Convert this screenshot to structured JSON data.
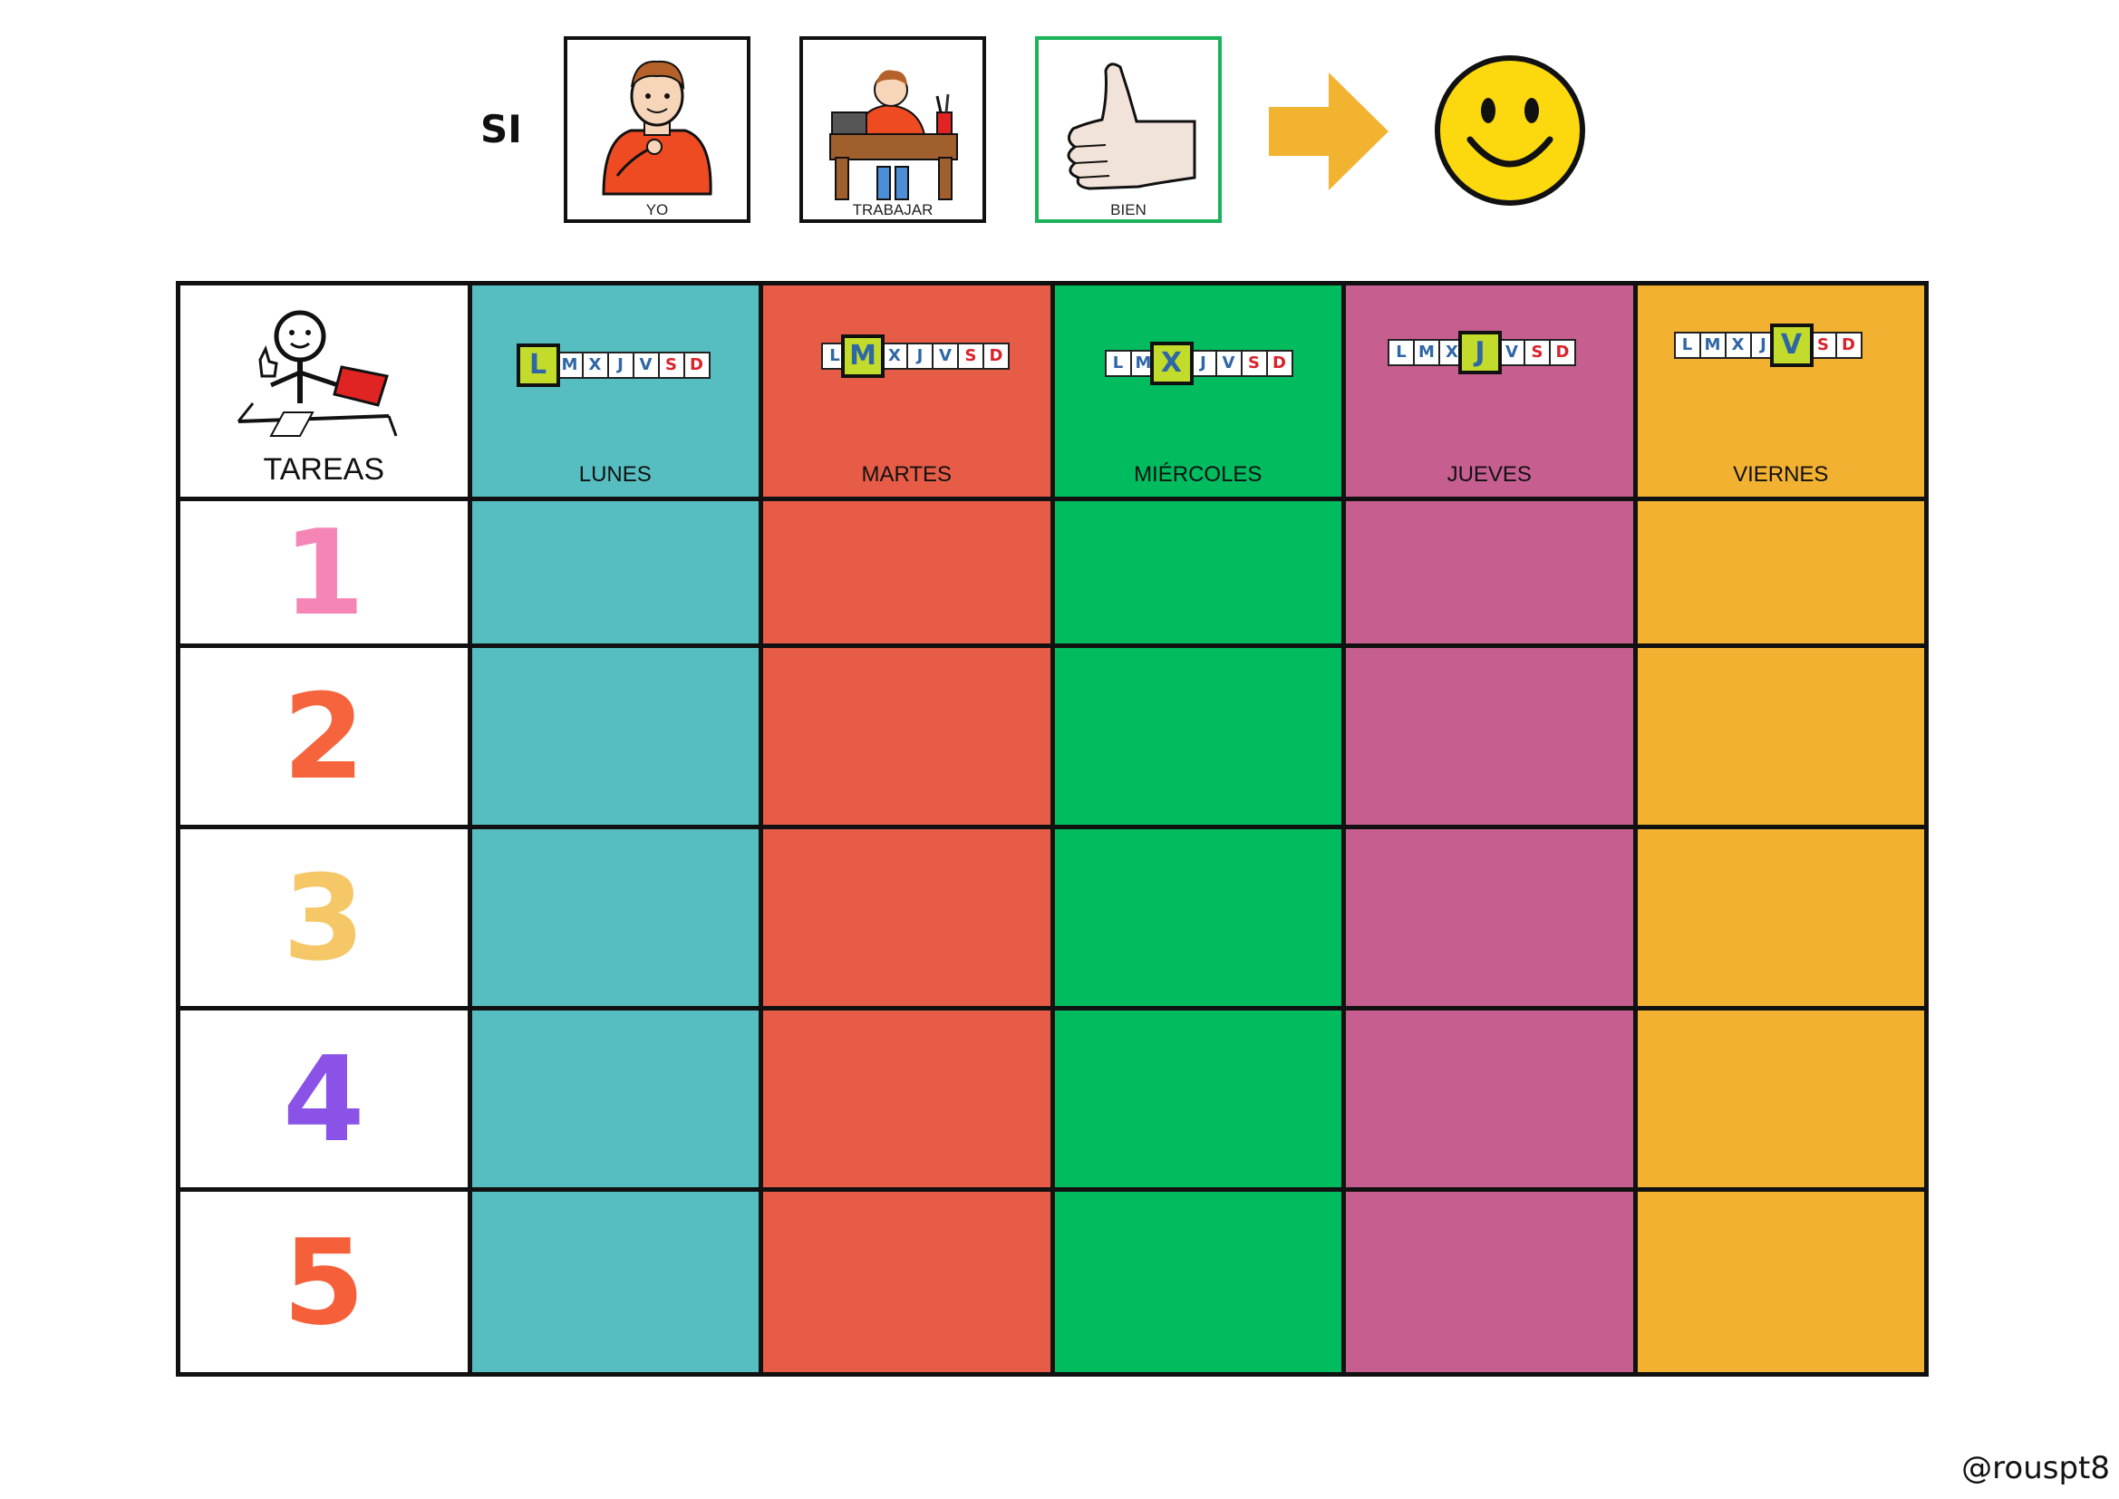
{
  "header": {
    "si": "SI",
    "pictograms": [
      {
        "caption": "YO",
        "icon": "boy-pointing-self-icon"
      },
      {
        "caption": "TRABAJAR",
        "icon": "boy-working-at-desk-icon"
      },
      {
        "caption": "BIEN",
        "icon": "thumbs-up-icon"
      }
    ],
    "arrow_icon": "right-arrow-icon",
    "result_icon": "smiley-face-icon"
  },
  "grid": {
    "tareas_label": "TAREAS",
    "tareas_icon": "person-doing-tasks-icon",
    "week_letters": [
      "L",
      "M",
      "X",
      "J",
      "V",
      "S",
      "D"
    ],
    "weekend_letters": [
      "S",
      "D"
    ],
    "days": [
      {
        "name": "LUNES",
        "letter": "L",
        "color": "#56bec1"
      },
      {
        "name": "MARTES",
        "letter": "M",
        "color": "#e65c46"
      },
      {
        "name": "MIÉRCOLES",
        "letter": "X",
        "color": "#00bc5f"
      },
      {
        "name": "JUEVES",
        "letter": "J",
        "color": "#c65f90"
      },
      {
        "name": "VIERNES",
        "letter": "V",
        "color": "#f2b130"
      }
    ],
    "tasks": [
      {
        "number": "1",
        "color": "#f585b5"
      },
      {
        "number": "2",
        "color": "#f5643d"
      },
      {
        "number": "3",
        "color": "#f5c766"
      },
      {
        "number": "4",
        "color": "#8a52e6"
      },
      {
        "number": "5",
        "color": "#f5603a"
      }
    ]
  },
  "footer": {
    "credit": "@rouspt8"
  }
}
